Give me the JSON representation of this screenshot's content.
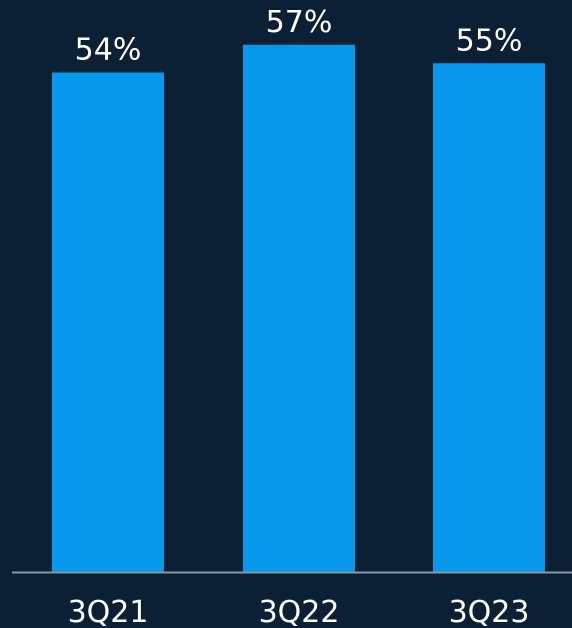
{
  "chart_data": {
    "type": "bar",
    "categories": [
      "3Q21",
      "3Q22",
      "3Q23"
    ],
    "values": [
      54,
      57,
      55
    ],
    "value_labels": [
      "54%",
      "57%",
      "55%"
    ],
    "title": "",
    "xlabel": "",
    "ylabel": "",
    "grid": false,
    "legend": "none"
  },
  "colors": {
    "background": "#0c2035",
    "bar": "#0898eb",
    "axis": "#8a96a3",
    "text": "#ffffff"
  }
}
